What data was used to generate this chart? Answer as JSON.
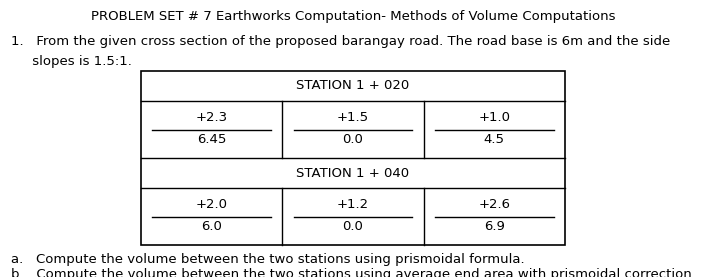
{
  "title": "PROBLEM SET # 7 Earthworks Computation- Methods of Volume Computations",
  "problem_line1": "1.   From the given cross section of the proposed barangay road. The road base is 6m and the side",
  "problem_line2": "     slopes is 1.5:1.",
  "station1_label": "STATION 1 + 020",
  "station1_left_top": "6.45",
  "station1_left_bot": "+2.3",
  "station1_mid_top": "0.0",
  "station1_mid_bot": "+1.5",
  "station1_right_top": "4.5",
  "station1_right_bot": "+1.0",
  "station2_label": "STATION 1 + 040",
  "station2_left_top": "6.0",
  "station2_left_bot": "+2.0",
  "station2_mid_top": "0.0",
  "station2_mid_bot": "+1.2",
  "station2_right_top": "6.9",
  "station2_right_bot": "+2.6",
  "question_a": "a.   Compute the volume between the two stations using prismoidal formula.",
  "question_b": "b.   Compute the volume between the two stations using average end area with prismoidal correction.",
  "bg_color": "#ffffff",
  "text_color": "#000000",
  "title_fontsize": 9.5,
  "body_fontsize": 9.5,
  "cell_fontsize": 9.5,
  "label_fontsize": 9.5,
  "tl": 0.2,
  "tr": 0.8,
  "tt": 0.745,
  "tb": 0.115
}
